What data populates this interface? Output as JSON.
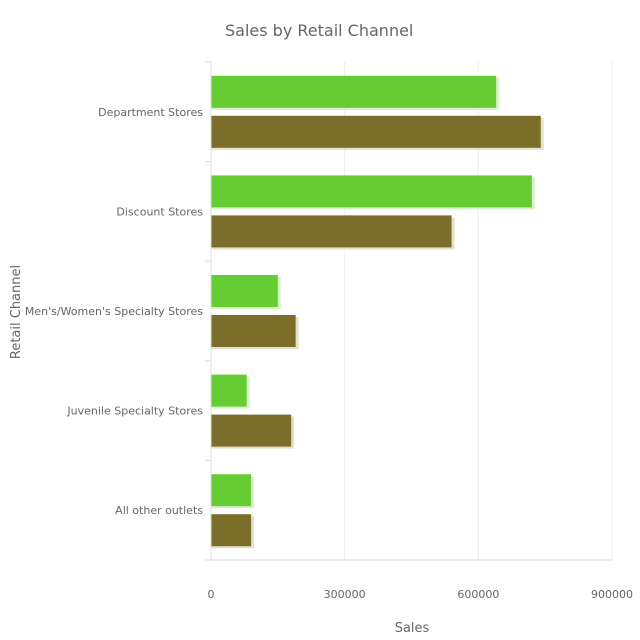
{
  "chart_data": {
    "type": "bar",
    "orientation": "horizontal",
    "title": "Sales by Retail Channel",
    "xlabel": "Sales",
    "ylabel": "Retail Channel",
    "categories": [
      "Department Stores",
      "Discount Stores",
      "Men's/Women's Specialty Stores",
      "Juvenile Specialty Stores",
      "All other outlets"
    ],
    "series": [
      {
        "color": "#66cc33",
        "values": [
          640000,
          720000,
          150000,
          80000,
          90000
        ]
      },
      {
        "color": "#7a6e2a",
        "values": [
          740000,
          540000,
          190000,
          180000,
          90000
        ]
      }
    ],
    "xlim": [
      0,
      900000
    ],
    "x_ticks": [
      "0",
      "300000",
      "600000",
      "900000"
    ],
    "x_tick_values": [
      0,
      300000,
      600000,
      900000
    ],
    "grid": "vertical",
    "legend": "none"
  }
}
